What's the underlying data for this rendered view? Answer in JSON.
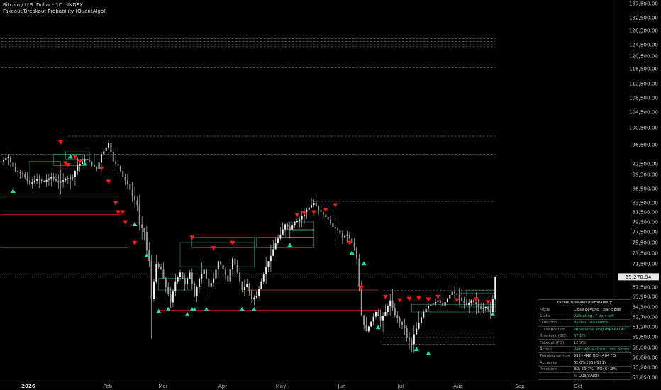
{
  "chart_data": {
    "type": "candlestick",
    "title": "Bitcoin / U.S. Dollar · 1D · INDEX",
    "indicator": "Fakeout/Breakout Probability [QuantAlgo]",
    "y_ticks": [
      "137,500.00",
      "132,500.00",
      "128,500.00",
      "124,500.00",
      "120,500.00",
      "116,500.00",
      "112,500.00",
      "108,500.00",
      "104,500.00",
      "100,500.00",
      "96,500.00",
      "92,500.00",
      "89,500.00",
      "86,500.00",
      "83,500.00",
      "81,500.00",
      "79,500.00",
      "77,500.00",
      "75,500.00",
      "73,500.00",
      "71,500.00",
      "67,500.00",
      "65,900.00",
      "64,300.00",
      "62,700.00",
      "61,200.00",
      "59,600.00",
      "58,000.00",
      "56,600.00",
      "55,200.00",
      "53,850.00"
    ],
    "x_ticks": [
      "2026",
      "Feb",
      "Mar",
      "Apr",
      "May",
      "Jun",
      "Jul",
      "Aug",
      "Sep",
      "Oct"
    ],
    "last_price": "69,270.94",
    "close_path": [
      [
        0,
        93000
      ],
      [
        3,
        94000
      ],
      [
        6,
        90500
      ],
      [
        9,
        89500
      ],
      [
        12,
        87500
      ],
      [
        15,
        88500
      ],
      [
        18,
        88000
      ],
      [
        21,
        89000
      ],
      [
        24,
        87800
      ],
      [
        27,
        88500
      ],
      [
        30,
        89000
      ],
      [
        32,
        92000
      ],
      [
        35,
        93500
      ],
      [
        37,
        93000
      ],
      [
        40,
        91000
      ],
      [
        42,
        94500
      ],
      [
        44,
        95800
      ],
      [
        45,
        97000
      ],
      [
        47,
        93000
      ],
      [
        49,
        92000
      ],
      [
        51,
        89000
      ],
      [
        53,
        87500
      ],
      [
        55,
        85000
      ],
      [
        57,
        83000
      ],
      [
        58,
        79000
      ],
      [
        60,
        77500
      ],
      [
        61,
        74000
      ],
      [
        62,
        72000
      ],
      [
        63,
        65500
      ],
      [
        64,
        68500
      ],
      [
        65,
        71500
      ],
      [
        67,
        70500
      ],
      [
        69,
        67500
      ],
      [
        71,
        65000
      ],
      [
        73,
        68500
      ],
      [
        75,
        70000
      ],
      [
        77,
        68000
      ],
      [
        79,
        70000
      ],
      [
        81,
        66000
      ],
      [
        83,
        69000
      ],
      [
        85,
        70500
      ],
      [
        87,
        67500
      ],
      [
        89,
        69000
      ],
      [
        91,
        72000
      ],
      [
        93,
        70500
      ],
      [
        95,
        68500
      ],
      [
        97,
        72500
      ],
      [
        99,
        70000
      ],
      [
        101,
        67000
      ],
      [
        103,
        68000
      ],
      [
        105,
        65500
      ],
      [
        107,
        66000
      ],
      [
        109,
        68500
      ],
      [
        111,
        71000
      ],
      [
        113,
        73000
      ],
      [
        115,
        75500
      ],
      [
        117,
        77000
      ],
      [
        119,
        79000
      ],
      [
        121,
        78000
      ],
      [
        123,
        79500
      ],
      [
        125,
        80000
      ],
      [
        127,
        81500
      ],
      [
        129,
        82500
      ],
      [
        131,
        83500
      ],
      [
        133,
        82000
      ],
      [
        135,
        81000
      ],
      [
        137,
        80000
      ],
      [
        139,
        78500
      ],
      [
        141,
        77800
      ],
      [
        143,
        76500
      ],
      [
        145,
        77000
      ],
      [
        147,
        75500
      ],
      [
        148,
        74500
      ],
      [
        149,
        72500
      ],
      [
        150,
        67500
      ],
      [
        151,
        63000
      ],
      [
        152,
        61500
      ],
      [
        153,
        60500
      ],
      [
        155,
        62000
      ],
      [
        157,
        63500
      ],
      [
        159,
        62200
      ],
      [
        161,
        63500
      ],
      [
        163,
        65300
      ],
      [
        165,
        63000
      ],
      [
        167,
        62000
      ],
      [
        169,
        61000
      ],
      [
        170,
        59500
      ],
      [
        171,
        59000
      ],
      [
        172,
        58500
      ],
      [
        173,
        60000
      ],
      [
        175,
        61800
      ],
      [
        177,
        63500
      ],
      [
        179,
        64500
      ],
      [
        181,
        64800
      ],
      [
        183,
        65300
      ],
      [
        185,
        64500
      ],
      [
        187,
        65600
      ],
      [
        189,
        66700
      ],
      [
        191,
        66200
      ],
      [
        193,
        65200
      ],
      [
        195,
        64600
      ],
      [
        197,
        65300
      ],
      [
        199,
        64700
      ],
      [
        201,
        64000
      ],
      [
        203,
        64300
      ],
      [
        205,
        63500
      ],
      [
        206,
        65500
      ],
      [
        207,
        69270
      ]
    ],
    "bullish_signals": [
      [
        5,
        86500
      ],
      [
        29,
        94500
      ],
      [
        35,
        93000
      ],
      [
        56,
        79500
      ],
      [
        61,
        73500
      ],
      [
        66,
        64000
      ],
      [
        70,
        64300
      ],
      [
        78,
        63500
      ],
      [
        80,
        64300
      ],
      [
        81,
        64300
      ],
      [
        86,
        64300
      ],
      [
        101,
        64300
      ],
      [
        106,
        64300
      ],
      [
        121,
        75500
      ],
      [
        147,
        74000
      ],
      [
        152,
        72000
      ],
      [
        158,
        61500
      ],
      [
        174,
        58100
      ],
      [
        179,
        57500
      ],
      [
        206,
        63500
      ]
    ],
    "bearish_signals": [
      [
        25,
        96500
      ],
      [
        31,
        93500
      ],
      [
        33,
        92500
      ],
      [
        27,
        92000
      ],
      [
        28,
        91500
      ],
      [
        42,
        90500
      ],
      [
        45,
        87500
      ],
      [
        48,
        83000
      ],
      [
        49,
        81000
      ],
      [
        51,
        81000
      ],
      [
        52,
        79000
      ],
      [
        56,
        75000
      ],
      [
        80,
        76000
      ],
      [
        89,
        74000
      ],
      [
        97,
        75000
      ],
      [
        124,
        80500
      ],
      [
        127,
        80800
      ],
      [
        131,
        81000
      ],
      [
        136,
        81500
      ],
      [
        140,
        82500
      ],
      [
        146,
        75000
      ],
      [
        151,
        67000
      ],
      [
        161,
        65500
      ],
      [
        167,
        65000
      ],
      [
        171,
        65200
      ],
      [
        175,
        65300
      ],
      [
        179,
        65100
      ],
      [
        183,
        65500
      ],
      [
        191,
        65000
      ],
      [
        199,
        65100
      ],
      [
        204,
        64700
      ]
    ],
    "dashed_levels": [
      [
        116800,
        0,
        207
      ],
      [
        123800,
        0,
        207
      ],
      [
        124500,
        0,
        207
      ],
      [
        125400,
        0,
        207
      ],
      [
        126200,
        0,
        207
      ],
      [
        98500,
        28,
        207
      ],
      [
        94500,
        0,
        207
      ],
      [
        83800,
        131,
        207
      ],
      [
        66900,
        160,
        207
      ],
      [
        60200,
        158,
        207
      ],
      [
        59500,
        160,
        207
      ],
      [
        58500,
        160,
        207
      ]
    ],
    "red_levels": [
      [
        85400,
        0,
        48
      ],
      [
        84900,
        0,
        48
      ],
      [
        81000,
        0,
        50
      ],
      [
        74500,
        0,
        53
      ],
      [
        67000,
        103,
        158
      ],
      [
        63800,
        66,
        158
      ]
    ],
    "green_boxes": [
      [
        12,
        93000,
        25,
        88500
      ],
      [
        22,
        94500,
        34,
        92000
      ],
      [
        27,
        95000,
        37,
        93500
      ],
      [
        75,
        75500,
        106,
        71000
      ],
      [
        80,
        76500,
        106,
        74500
      ],
      [
        66,
        69000,
        80,
        67000
      ],
      [
        107,
        76500,
        131,
        74500
      ],
      [
        119,
        78000,
        131,
        76500
      ],
      [
        121,
        79500,
        131,
        77700
      ],
      [
        172,
        64700,
        207,
        63500
      ],
      [
        192,
        66500,
        207,
        64300
      ],
      [
        195,
        67000,
        207,
        65500
      ]
    ],
    "table": {
      "title": "Fakeout/Breakout Probability",
      "rows": [
        {
          "label": "Mode",
          "value": "Close beyond · Bar close",
          "color": "#e6e6e6"
        },
        {
          "label": "State",
          "value": "Validating, 7 bars left",
          "color": "#22c993"
        },
        {
          "label": "Direction",
          "value": "Bullish, resistance",
          "color": "#22c993"
        },
        {
          "label": "Classification",
          "value": "Provisional long (BREAKOUT)",
          "color": "#22c993"
        },
        {
          "label": "Breakout (BO)",
          "value": "87.1%",
          "color": "#22c993"
        },
        {
          "label": "Fakeout (FO)",
          "value": "12.9%",
          "color": "#9a9a9a"
        },
        {
          "label": "Action",
          "value": "Valid while closes hold above",
          "color": "#22c993"
        },
        {
          "label": "Training sample",
          "value": "932 · 448 BO · 484 FO",
          "color": "#e6e6e6"
        },
        {
          "label": "Accuracy",
          "value": "62.0%  (565/911)",
          "color": "#e6e6e6"
        },
        {
          "label": "Precision",
          "value": "BO: 59.7% · FO: 64.3%",
          "color": "#e6e6e6"
        }
      ],
      "footer": "© QuantAlgo"
    },
    "colors": {
      "bull": "#2ad6a2",
      "bear": "#ff1a1a",
      "candle": "#d8d8d8",
      "level_red": "#ff3030",
      "box_green": "#3fd3a0",
      "dashed": "#6e6e6e"
    }
  }
}
